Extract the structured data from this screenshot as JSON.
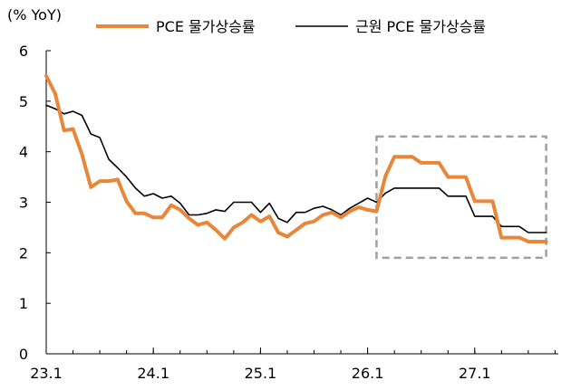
{
  "chart_data": {
    "type": "line",
    "title": "",
    "unit_label": "(% YoY)",
    "xlabel": "",
    "ylabel": "",
    "ylim": [
      0,
      6
    ],
    "y_ticks": [
      "0",
      "1",
      "2",
      "3",
      "4",
      "5",
      "6"
    ],
    "x_ticks": [
      "23.1",
      "24.1",
      "25.1",
      "26.1",
      "27.1"
    ],
    "x_tick_months": [
      0,
      12,
      24,
      36,
      48
    ],
    "x_unit": "months from Jan 2023",
    "grid": false,
    "legend": "top",
    "highlight_box": {
      "x_range": [
        37,
        56
      ],
      "y_range": [
        1.9,
        4.3
      ],
      "color": "#a0a0a0",
      "style": "dashed"
    },
    "series": [
      {
        "name": "PCE 물가상승률",
        "color": "#e8863a",
        "values": [
          5.5,
          5.15,
          4.42,
          4.45,
          3.95,
          3.3,
          3.42,
          3.42,
          3.45,
          3.02,
          2.78,
          2.78,
          2.7,
          2.7,
          2.94,
          2.85,
          2.68,
          2.55,
          2.6,
          2.45,
          2.28,
          2.5,
          2.6,
          2.75,
          2.62,
          2.72,
          2.4,
          2.32,
          2.45,
          2.58,
          2.62,
          2.75,
          2.8,
          2.7,
          2.82,
          2.9,
          2.85,
          2.82,
          3.52,
          3.9,
          3.9,
          3.9,
          3.78,
          3.78,
          3.78,
          3.5,
          3.5,
          3.5,
          3.02,
          3.02,
          3.02,
          2.3,
          2.3,
          2.3,
          2.22,
          2.22,
          2.22
        ]
      },
      {
        "name": "근원 PCE 물가상승률",
        "color": "#000000",
        "values": [
          4.92,
          4.85,
          4.75,
          4.8,
          4.72,
          4.35,
          4.28,
          3.85,
          3.68,
          3.5,
          3.28,
          3.12,
          3.17,
          3.08,
          3.12,
          2.98,
          2.75,
          2.75,
          2.78,
          2.85,
          2.82,
          3.0,
          3.0,
          3.0,
          2.8,
          2.98,
          2.68,
          2.6,
          2.8,
          2.8,
          2.88,
          2.92,
          2.85,
          2.75,
          2.88,
          2.98,
          3.08,
          3.0,
          3.18,
          3.28,
          3.28,
          3.28,
          3.28,
          3.28,
          3.28,
          3.12,
          3.12,
          3.12,
          2.72,
          2.72,
          2.72,
          2.52,
          2.52,
          2.52,
          2.4,
          2.4,
          2.4
        ]
      }
    ]
  }
}
